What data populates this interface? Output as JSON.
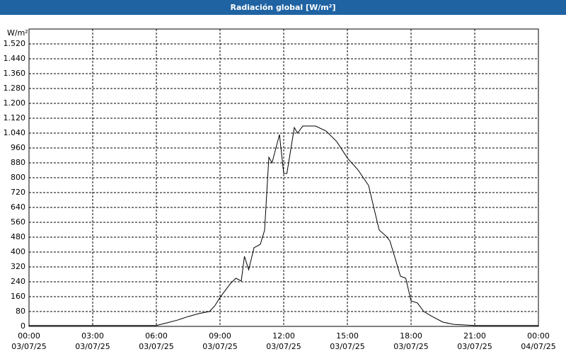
{
  "chart_data": {
    "type": "line",
    "title": "Radiación global [W/m²]",
    "y_unit": "W/m²",
    "x": [
      0,
      3,
      6,
      6.5,
      7,
      7.5,
      8,
      8.5,
      8.75,
      9,
      9.5,
      9.75,
      10,
      10.15,
      10.35,
      10.6,
      10.9,
      11.1,
      11.3,
      11.45,
      11.8,
      12,
      12.15,
      12.5,
      12.65,
      12.9,
      13.5,
      14,
      14.5,
      15,
      15.5,
      16,
      16.3,
      16.5,
      16.8,
      17,
      17.3,
      17.5,
      17.75,
      18,
      18.3,
      18.6,
      19,
      19.5,
      20,
      21,
      22.5,
      24
    ],
    "series": [
      {
        "color": "#000000",
        "values": [
          5,
          5,
          5,
          19,
          34,
          53,
          69,
          80,
          110,
          156,
          232,
          259,
          244,
          377,
          305,
          423,
          442,
          518,
          910,
          880,
          1032,
          823,
          823,
          1070,
          1040,
          1078,
          1078,
          1051,
          994,
          906,
          842,
          758,
          613,
          518,
          488,
          461,
          347,
          270,
          259,
          137,
          126,
          80,
          53,
          23,
          11,
          5,
          5,
          5
        ]
      }
    ],
    "xlim": [
      0,
      24
    ],
    "xticks": [
      {
        "value": 0,
        "label": [
          "00:00",
          "03/07/25"
        ]
      },
      {
        "value": 3,
        "label": [
          "03:00",
          "03/07/25"
        ]
      },
      {
        "value": 6,
        "label": [
          "06:00",
          "03/07/25"
        ]
      },
      {
        "value": 9,
        "label": [
          "09:00",
          "03/07/25"
        ]
      },
      {
        "value": 12,
        "label": [
          "12:00",
          "03/07/25"
        ]
      },
      {
        "value": 15,
        "label": [
          "15:00",
          "03/07/25"
        ]
      },
      {
        "value": 18,
        "label": [
          "18:00",
          "03/07/25"
        ]
      },
      {
        "value": 21,
        "label": [
          "21:00",
          "03/07/25"
        ]
      },
      {
        "value": 24,
        "label": [
          "00:00",
          "04/07/25"
        ]
      }
    ],
    "ylim": [
      0,
      1600
    ],
    "yticks": [
      0,
      80,
      160,
      240,
      320,
      400,
      480,
      560,
      640,
      720,
      800,
      880,
      960,
      {
        "value": 1040,
        "label": "1.040"
      },
      {
        "value": 1120,
        "label": "1.120"
      },
      {
        "value": 1200,
        "label": "1.200"
      },
      {
        "value": 1280,
        "label": "1.280"
      },
      {
        "value": 1360,
        "label": "1.360"
      },
      {
        "value": 1440,
        "label": "1.440"
      },
      {
        "value": 1520,
        "label": "1.520"
      }
    ],
    "grid": true
  }
}
